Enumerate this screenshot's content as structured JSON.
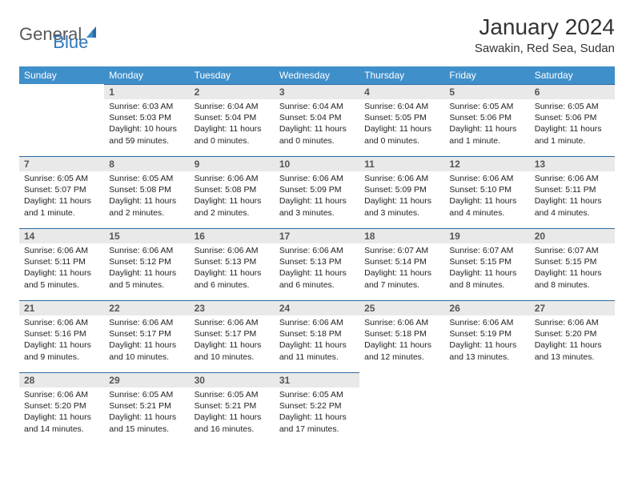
{
  "brand": {
    "part1": "General",
    "part2": "Blue"
  },
  "title": "January 2024",
  "location": "Sawakin, Red Sea, Sudan",
  "colors": {
    "header_bg": "#3f8fca",
    "header_text": "#ffffff",
    "daynum_bg": "#e9e9e9",
    "daynum_text": "#555555",
    "cell_border": "#2f6aa3",
    "body_text": "#222222",
    "logo_gray": "#57585a",
    "logo_blue": "#3277bd",
    "page_bg": "#ffffff"
  },
  "fonts": {
    "title_size_pt": 21,
    "location_size_pt": 11,
    "dayhead_size_pt": 9,
    "daynum_size_pt": 9,
    "body_size_pt": 8
  },
  "weekdays": [
    "Sunday",
    "Monday",
    "Tuesday",
    "Wednesday",
    "Thursday",
    "Friday",
    "Saturday"
  ],
  "weeks": [
    [
      null,
      {
        "n": "1",
        "sunrise": "6:03 AM",
        "sunset": "5:03 PM",
        "daylight": "10 hours and 59 minutes."
      },
      {
        "n": "2",
        "sunrise": "6:04 AM",
        "sunset": "5:04 PM",
        "daylight": "11 hours and 0 minutes."
      },
      {
        "n": "3",
        "sunrise": "6:04 AM",
        "sunset": "5:04 PM",
        "daylight": "11 hours and 0 minutes."
      },
      {
        "n": "4",
        "sunrise": "6:04 AM",
        "sunset": "5:05 PM",
        "daylight": "11 hours and 0 minutes."
      },
      {
        "n": "5",
        "sunrise": "6:05 AM",
        "sunset": "5:06 PM",
        "daylight": "11 hours and 1 minute."
      },
      {
        "n": "6",
        "sunrise": "6:05 AM",
        "sunset": "5:06 PM",
        "daylight": "11 hours and 1 minute."
      }
    ],
    [
      {
        "n": "7",
        "sunrise": "6:05 AM",
        "sunset": "5:07 PM",
        "daylight": "11 hours and 1 minute."
      },
      {
        "n": "8",
        "sunrise": "6:05 AM",
        "sunset": "5:08 PM",
        "daylight": "11 hours and 2 minutes."
      },
      {
        "n": "9",
        "sunrise": "6:06 AM",
        "sunset": "5:08 PM",
        "daylight": "11 hours and 2 minutes."
      },
      {
        "n": "10",
        "sunrise": "6:06 AM",
        "sunset": "5:09 PM",
        "daylight": "11 hours and 3 minutes."
      },
      {
        "n": "11",
        "sunrise": "6:06 AM",
        "sunset": "5:09 PM",
        "daylight": "11 hours and 3 minutes."
      },
      {
        "n": "12",
        "sunrise": "6:06 AM",
        "sunset": "5:10 PM",
        "daylight": "11 hours and 4 minutes."
      },
      {
        "n": "13",
        "sunrise": "6:06 AM",
        "sunset": "5:11 PM",
        "daylight": "11 hours and 4 minutes."
      }
    ],
    [
      {
        "n": "14",
        "sunrise": "6:06 AM",
        "sunset": "5:11 PM",
        "daylight": "11 hours and 5 minutes."
      },
      {
        "n": "15",
        "sunrise": "6:06 AM",
        "sunset": "5:12 PM",
        "daylight": "11 hours and 5 minutes."
      },
      {
        "n": "16",
        "sunrise": "6:06 AM",
        "sunset": "5:13 PM",
        "daylight": "11 hours and 6 minutes."
      },
      {
        "n": "17",
        "sunrise": "6:06 AM",
        "sunset": "5:13 PM",
        "daylight": "11 hours and 6 minutes."
      },
      {
        "n": "18",
        "sunrise": "6:07 AM",
        "sunset": "5:14 PM",
        "daylight": "11 hours and 7 minutes."
      },
      {
        "n": "19",
        "sunrise": "6:07 AM",
        "sunset": "5:15 PM",
        "daylight": "11 hours and 8 minutes."
      },
      {
        "n": "20",
        "sunrise": "6:07 AM",
        "sunset": "5:15 PM",
        "daylight": "11 hours and 8 minutes."
      }
    ],
    [
      {
        "n": "21",
        "sunrise": "6:06 AM",
        "sunset": "5:16 PM",
        "daylight": "11 hours and 9 minutes."
      },
      {
        "n": "22",
        "sunrise": "6:06 AM",
        "sunset": "5:17 PM",
        "daylight": "11 hours and 10 minutes."
      },
      {
        "n": "23",
        "sunrise": "6:06 AM",
        "sunset": "5:17 PM",
        "daylight": "11 hours and 10 minutes."
      },
      {
        "n": "24",
        "sunrise": "6:06 AM",
        "sunset": "5:18 PM",
        "daylight": "11 hours and 11 minutes."
      },
      {
        "n": "25",
        "sunrise": "6:06 AM",
        "sunset": "5:18 PM",
        "daylight": "11 hours and 12 minutes."
      },
      {
        "n": "26",
        "sunrise": "6:06 AM",
        "sunset": "5:19 PM",
        "daylight": "11 hours and 13 minutes."
      },
      {
        "n": "27",
        "sunrise": "6:06 AM",
        "sunset": "5:20 PM",
        "daylight": "11 hours and 13 minutes."
      }
    ],
    [
      {
        "n": "28",
        "sunrise": "6:06 AM",
        "sunset": "5:20 PM",
        "daylight": "11 hours and 14 minutes."
      },
      {
        "n": "29",
        "sunrise": "6:05 AM",
        "sunset": "5:21 PM",
        "daylight": "11 hours and 15 minutes."
      },
      {
        "n": "30",
        "sunrise": "6:05 AM",
        "sunset": "5:21 PM",
        "daylight": "11 hours and 16 minutes."
      },
      {
        "n": "31",
        "sunrise": "6:05 AM",
        "sunset": "5:22 PM",
        "daylight": "11 hours and 17 minutes."
      },
      null,
      null,
      null
    ]
  ],
  "labels": {
    "sunrise": "Sunrise:",
    "sunset": "Sunset:",
    "daylight": "Daylight:"
  }
}
